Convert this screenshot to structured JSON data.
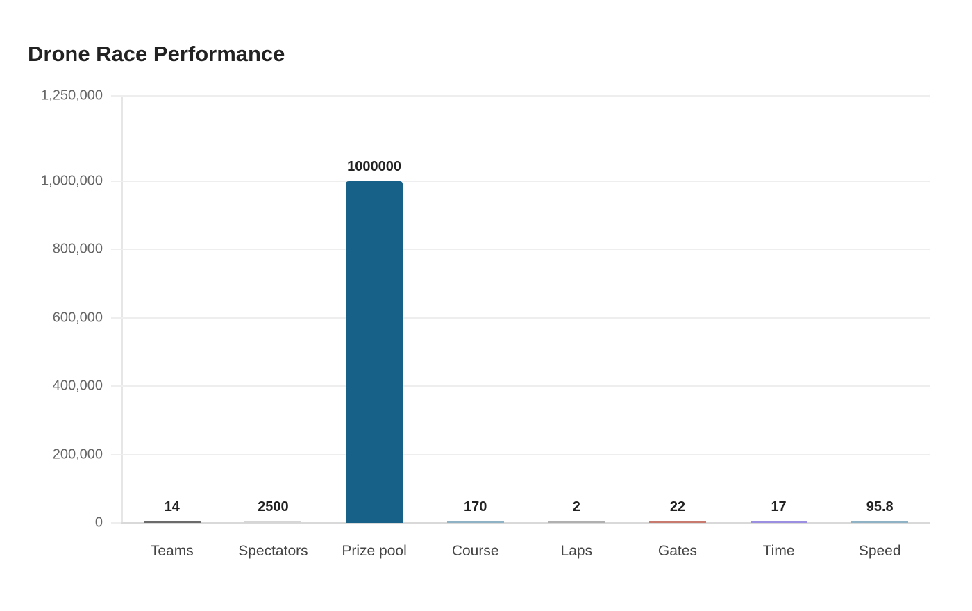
{
  "chart_data": {
    "type": "bar",
    "title": "Drone Race Performance",
    "xlabel": "",
    "ylabel": "",
    "categories": [
      "Teams",
      "Spectators",
      "Prize pool",
      "Course",
      "Laps",
      "Gates",
      "Time",
      "Speed"
    ],
    "values": [
      14,
      2500,
      1000000,
      170,
      2,
      22,
      17,
      95.8
    ],
    "value_labels": [
      "14",
      "2500",
      "1000000",
      "170",
      "2",
      "22",
      "17",
      "95.8"
    ],
    "colors": [
      "#6b6b6b",
      "#d6d6d6",
      "#176087",
      "#8fb3c4",
      "#b0b0b0",
      "#c97a6f",
      "#9a8fe0",
      "#8fb3c4"
    ],
    "ylim": [
      0,
      1250000
    ],
    "yticks": [
      0,
      200000,
      400000,
      600000,
      800000,
      1000000,
      1250000
    ],
    "ytick_labels": [
      "0",
      "200,000",
      "400,000",
      "600,000",
      "800,000",
      "1,000,000",
      "1,250,000"
    ],
    "grid": true,
    "legend": null
  }
}
